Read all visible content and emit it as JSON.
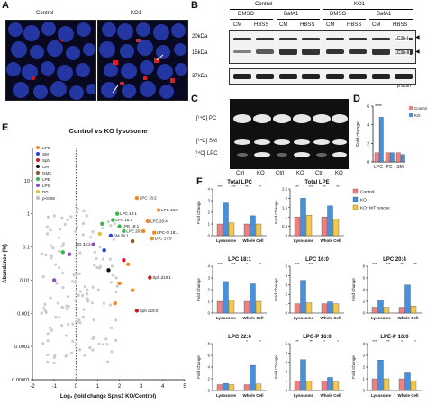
{
  "panels": {
    "A": {
      "label": "A",
      "control_title": "Control",
      "ko_title": "KO1"
    },
    "B": {
      "label": "B",
      "group1": "Control",
      "group2": "KO1",
      "treatments": [
        "DMSO",
        "BafA1",
        "DMSO",
        "BafA1"
      ],
      "media": [
        "CM",
        "HBSS",
        "CM",
        "HBSS",
        "CM",
        "HBSS",
        "CM",
        "HBSS"
      ],
      "mw_20": "20kDa",
      "mw_15": "15kDa",
      "mw_37": "37kDa",
      "band_lc3bi": "LC3b-I",
      "band_lc3bii": "LC3b-II",
      "band_actin": "β actin"
    },
    "C": {
      "label": "C",
      "pc": "[¹⁴C] PC",
      "sm": "[¹⁴C] SM",
      "lpc": "[¹⁴C] LPC",
      "lanes": [
        "Ctrl",
        "KO",
        "Ctrl",
        "KO",
        "Ctrl",
        "KO"
      ]
    },
    "D": {
      "label": "D"
    },
    "E": {
      "label": "E"
    },
    "F": {
      "label": "F"
    }
  },
  "chart_data": [
    {
      "id": "D",
      "type": "bar",
      "title": "",
      "ylabel": "Fold change",
      "categories": [
        "LPC",
        "PC",
        "SM"
      ],
      "series": [
        {
          "name": "Control",
          "color": "#f08080",
          "values": [
            1.0,
            1.0,
            1.0
          ]
        },
        {
          "name": "KO",
          "color": "#4a90d9",
          "values": [
            4.8,
            1.0,
            0.8
          ]
        }
      ],
      "ylim": [
        0,
        6
      ],
      "yticks": [
        0,
        2,
        4,
        6
      ],
      "significance": [
        "****",
        "",
        ""
      ]
    },
    {
      "id": "E",
      "type": "scatter",
      "title": "Control vs KO lysosome",
      "xlabel": "Log₂ (fold change Spns1 KO/Control)",
      "ylabel": "Abundance (%)",
      "xlim": [
        -2,
        5
      ],
      "xticks": [
        -2,
        -1,
        0,
        1,
        2,
        3,
        4,
        5
      ],
      "yscale": "log",
      "ylim": [
        1e-05,
        100
      ],
      "yticks": [
        "10",
        "1",
        "0.1",
        "0.01",
        "0.001",
        "0.0001",
        "0.00001"
      ],
      "legend": [
        {
          "name": "LPC",
          "color": "#f08a24"
        },
        {
          "name": "SM",
          "color": "#2f3fd0"
        },
        {
          "name": "Sph",
          "color": "#c81e1e"
        },
        {
          "name": "Cer",
          "color": "#111111"
        },
        {
          "name": "GM3",
          "color": "#8b5a2b"
        },
        {
          "name": "LPE",
          "color": "#3cb34a"
        },
        {
          "name": "LPS",
          "color": "#8a4fb8"
        },
        {
          "name": "DG",
          "color": "#e0c030"
        },
        {
          "name": "p<0.05",
          "color": "#bbbbbb"
        }
      ],
      "annotations": [
        "LPC 18:2",
        "LPC 16:0",
        "LPC 18:1",
        "LPC 16:1",
        "LPE 18:1",
        "LPE 20:4",
        "LPC 20:4",
        "SM 34:1",
        "LPC-O 18:1",
        "LPC 17:0",
        "DG 34:2",
        "LPS 18:1",
        "Sph d18:1",
        "Sph d18:0"
      ],
      "points": [
        {
          "group": "LPC",
          "x": 2.8,
          "y": 3.0,
          "label": "LPC 18:2"
        },
        {
          "group": "LPC",
          "x": 3.8,
          "y": 1.3,
          "label": "LPC 16:0"
        },
        {
          "group": "LPC",
          "x": 3.3,
          "y": 0.6,
          "label": "LPC 20:4"
        },
        {
          "group": "LPC",
          "x": 3.6,
          "y": 0.27,
          "label": "LPC-O 18:1"
        },
        {
          "group": "LPC",
          "x": 3.5,
          "y": 0.18,
          "label": "LPC 17:0"
        },
        {
          "group": "LPE",
          "x": 1.9,
          "y": 1.0,
          "label": "LPC 18:1"
        },
        {
          "group": "LPE",
          "x": 1.7,
          "y": 0.65,
          "label": "LPC 16:1"
        },
        {
          "group": "LPE",
          "x": 2.0,
          "y": 0.42,
          "label": "LPE 18:1"
        },
        {
          "group": "LPE",
          "x": 2.2,
          "y": 0.3,
          "label": "LPE 20:4"
        },
        {
          "group": "SM",
          "x": 1.6,
          "y": 0.22,
          "label": "SM 34:1"
        },
        {
          "group": "LPS",
          "x": 0.8,
          "y": 0.12,
          "label": "DG 34:2"
        },
        {
          "group": "Sph",
          "x": 3.4,
          "y": 0.012,
          "label": "Sph d18:1"
        },
        {
          "group": "Sph",
          "x": 2.8,
          "y": 0.0012,
          "label": "Sph d18:0"
        },
        {
          "group": "LPC",
          "x": 3.1,
          "y": 0.3
        },
        {
          "group": "LPC",
          "x": 2.4,
          "y": 0.03
        },
        {
          "group": "LPC",
          "x": 2.0,
          "y": 0.008
        },
        {
          "group": "LPC",
          "x": 2.6,
          "y": 0.005
        },
        {
          "group": "LPC",
          "x": 1.8,
          "y": 0.002
        },
        {
          "group": "LPE",
          "x": 1.2,
          "y": 0.5
        },
        {
          "group": "SM",
          "x": 1.3,
          "y": 0.08
        },
        {
          "group": "Sph",
          "x": 2.2,
          "y": 0.04
        },
        {
          "group": "Cer",
          "x": 1.5,
          "y": 0.02
        },
        {
          "group": "GM3",
          "x": 2.6,
          "y": 0.15
        },
        {
          "group": "DG",
          "x": 1.1,
          "y": 0.25
        },
        {
          "group": "LPS",
          "x": -0.3,
          "y": 0.06
        },
        {
          "group": "LPS",
          "x": -1.0,
          "y": 0.01
        },
        {
          "group": "LPE",
          "x": -0.6,
          "y": 0.07
        }
      ]
    },
    {
      "id": "F",
      "type": "bar",
      "legend": [
        {
          "name": "Control",
          "color": "#f08080"
        },
        {
          "name": "KO",
          "color": "#4a90d9"
        },
        {
          "name": "KO+WT rescue",
          "color": "#f5c84a"
        }
      ],
      "charts": [
        {
          "title": "Total LPC",
          "ylabel": "Fold Change",
          "ymax": 4,
          "yticks": [
            0,
            1,
            2,
            3,
            4
          ],
          "categories": [
            "Lysosome",
            "Whole Cell"
          ],
          "values": [
            [
              1.0,
              2.8,
              1.1
            ],
            [
              1.0,
              1.7,
              1.0
            ]
          ],
          "sig": [
            "***",
            "***",
            "**",
            "*"
          ]
        },
        {
          "title": "Total LPE",
          "ylabel": "Fold Change",
          "ymax": 2.5,
          "yticks": [
            0.0,
            0.5,
            1.0,
            1.5,
            2.0,
            2.5
          ],
          "categories": [
            "Lysosome",
            "Whole Cell"
          ],
          "values": [
            [
              1.0,
              2.0,
              1.1
            ],
            [
              1.0,
              1.6,
              0.9
            ]
          ],
          "sig": [
            "**",
            "***",
            "**",
            "**"
          ]
        },
        {
          "title": "LPC 18:1",
          "ylabel": "Fold Change",
          "ymax": 4,
          "yticks": [
            0,
            1,
            2,
            3,
            4
          ],
          "categories": [
            "Lysosome",
            "Whole Cell"
          ],
          "values": [
            [
              1.0,
              2.7,
              1.1
            ],
            [
              1.0,
              2.5,
              1.0
            ]
          ],
          "sig": [
            "***",
            "***",
            "*",
            "*"
          ]
        },
        {
          "title": "LPC 16:0",
          "ylabel": "Fold Change",
          "ymax": 5,
          "yticks": [
            0,
            1,
            2,
            3,
            4,
            5
          ],
          "categories": [
            "Lysosome",
            "Whole Cell"
          ],
          "values": [
            [
              1.0,
              3.5,
              1.1
            ],
            [
              1.0,
              1.2,
              1.0
            ]
          ],
          "sig": [
            "***",
            "***",
            "",
            ""
          ]
        },
        {
          "title": "LPC 20:4",
          "ylabel": "Fold Change",
          "ymax": 8,
          "yticks": [
            0,
            2,
            4,
            6,
            8
          ],
          "categories": [
            "Lysosome",
            "Whole Cell"
          ],
          "values": [
            [
              1.0,
              2.2,
              1.0
            ],
            [
              1.0,
              4.8,
              1.2
            ]
          ],
          "sig": [
            "***",
            "***",
            "**",
            "**"
          ]
        },
        {
          "title": "LPC 22:6",
          "ylabel": "Fold Change",
          "ymax": 8,
          "yticks": [
            0,
            2,
            4,
            6,
            8
          ],
          "categories": [
            "Lysosome",
            "Whole Cell"
          ],
          "values": [
            [
              1.0,
              1.2,
              1.0
            ],
            [
              1.0,
              4.3,
              1.1
            ]
          ],
          "sig": [
            "",
            "",
            "*",
            "*"
          ]
        },
        {
          "title": "LPC-P 16:0",
          "ylabel": "Fold Change",
          "ymax": 5,
          "yticks": [
            0,
            1,
            2,
            3,
            4,
            5
          ],
          "categories": [
            "Lysosome",
            "Whole Cell"
          ],
          "values": [
            [
              1.0,
              3.3,
              1.0
            ],
            [
              1.0,
              1.4,
              0.9
            ]
          ],
          "sig": [
            "**",
            "**",
            "*",
            "*"
          ]
        },
        {
          "title": "LPE-P 16:0",
          "ylabel": "Fold Change",
          "ymax": 4,
          "yticks": [
            0,
            1,
            2,
            3,
            4
          ],
          "categories": [
            "Lysosome",
            "Whole Cell"
          ],
          "values": [
            [
              1.0,
              2.6,
              1.0
            ],
            [
              1.0,
              1.5,
              0.8
            ]
          ],
          "sig": [
            "***",
            "**",
            "*",
            "*"
          ]
        }
      ]
    }
  ]
}
